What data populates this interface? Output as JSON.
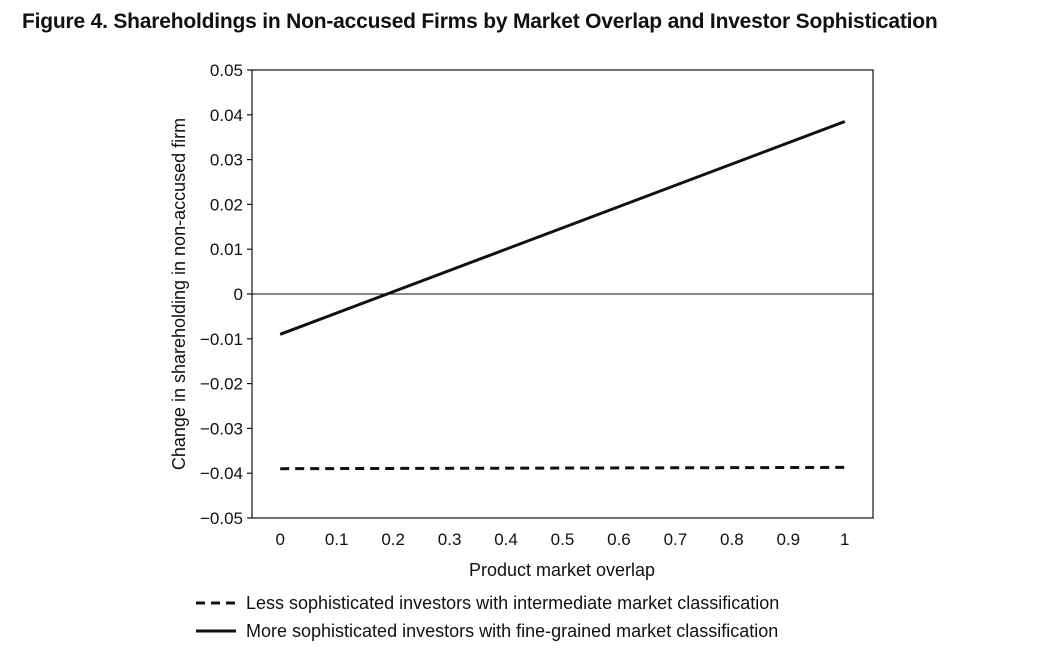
{
  "chart_data": {
    "type": "line",
    "title": "Figure 4.  Shareholdings in Non-accused Firms by Market Overlap and Investor Sophistication",
    "xlabel": "Product market overlap",
    "ylabel": "Change in shareholding in non-accused firm",
    "xlim": [
      -0.05,
      1.05
    ],
    "ylim": [
      -0.05,
      0.05
    ],
    "x_ticks": [
      0,
      0.1,
      0.2,
      0.3,
      0.4,
      0.5,
      0.6,
      0.7,
      0.8,
      0.9,
      1
    ],
    "x_tick_labels": [
      "0",
      "0.1",
      "0.2",
      "0.3",
      "0.4",
      "0.5",
      "0.6",
      "0.7",
      "0.8",
      "0.9",
      "1"
    ],
    "y_ticks": [
      0.05,
      0.04,
      0.03,
      0.02,
      0.01,
      0,
      -0.01,
      -0.02,
      -0.03,
      -0.04,
      -0.05
    ],
    "y_tick_labels": [
      "0.05",
      "0.04",
      "0.03",
      "0.02",
      "0.01",
      "0",
      "−0.01",
      "−0.02",
      "−0.03",
      "−0.04",
      "−0.05"
    ],
    "zero_line": true,
    "grid": false,
    "legend_position": "bottom",
    "series": [
      {
        "name": "Less sophisticated investors with intermediate market classification",
        "style": "dashed",
        "color": "#111111",
        "x": [
          0,
          1
        ],
        "y": [
          -0.039,
          -0.0387
        ]
      },
      {
        "name": "More sophisticated investors with fine-grained market classification",
        "style": "solid",
        "color": "#111111",
        "x": [
          0,
          1
        ],
        "y": [
          -0.009,
          0.0385
        ]
      }
    ]
  }
}
